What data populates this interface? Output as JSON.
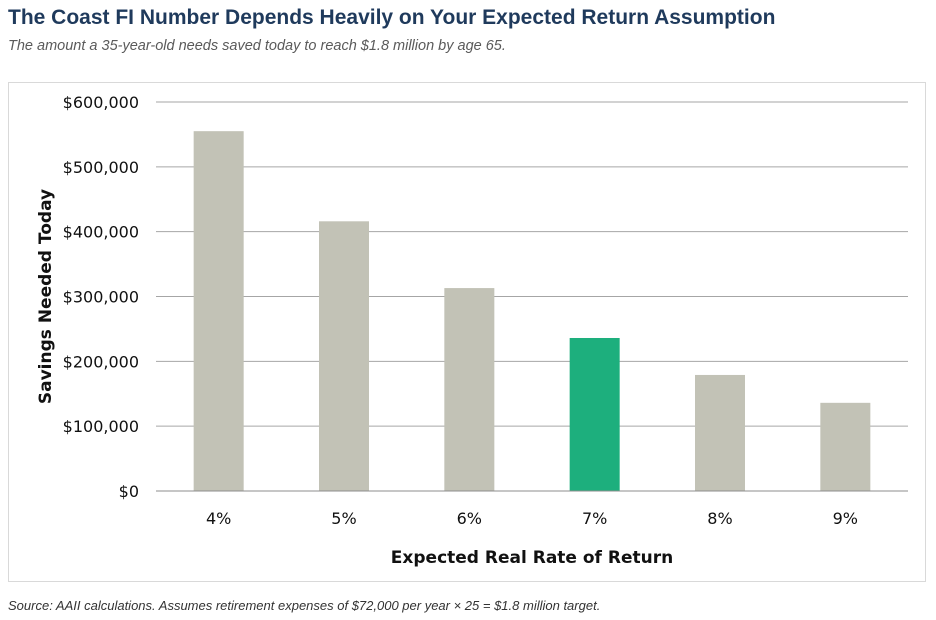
{
  "header": {
    "title": "The Coast FI Number Depends Heavily on Your Expected Return Assumption",
    "subtitle": "The amount a 35-year-old needs saved today to reach $1.8 million by age 65."
  },
  "footer": {
    "source": "Source: AAII calculations. Assumes retirement expenses of $72,000 per year × 25 = $1.8 million target."
  },
  "chart_data": {
    "type": "bar",
    "title": "The Coast FI Number Depends Heavily on Your Expected Return Assumption",
    "subtitle": "The amount a 35-year-old needs saved today to reach $1.8 million by age 65.",
    "xlabel": "Expected Real Rate of Return",
    "ylabel": "Savings Needed Today",
    "categories": [
      "4%",
      "5%",
      "6%",
      "7%",
      "8%",
      "9%"
    ],
    "values": [
      555000,
      416000,
      313000,
      236000,
      179000,
      136000
    ],
    "ylim": [
      0,
      600000
    ],
    "yticks": [
      0,
      100000,
      200000,
      300000,
      400000,
      500000,
      600000
    ],
    "ytick_labels": [
      "$0",
      "$100,000",
      "$200,000",
      "$300,000",
      "$400,000",
      "$500,000",
      "$600,000"
    ],
    "grid": true,
    "legend": "none",
    "highlight_category": "7%",
    "colors": {
      "bar": "#c2c2b6",
      "highlight": "#1daf7d",
      "grid": "#a6a6a6",
      "axis": "#8c8c8c",
      "title": "#1f3a5c"
    }
  }
}
